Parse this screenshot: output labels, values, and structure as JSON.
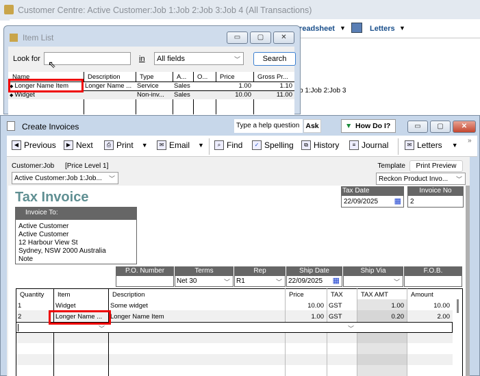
{
  "customer_centre": {
    "title": "Customer Centre: Active Customer:Job 1:Job 2:Job 3:Job 4 (All Transactions)",
    "spreadsheet_label": "readsheet",
    "letters_label": "Letters",
    "job_text": "b 1:Job 2:Job 3"
  },
  "item_list": {
    "title": "Item List",
    "look_for_label": "Look for",
    "look_for_value": "",
    "in_label": "in",
    "in_value": "All fields",
    "search_label": "Search",
    "columns": [
      "Name",
      "Description",
      "Type",
      "A...",
      "O...",
      "Price",
      "Gross Pr..."
    ],
    "rows": [
      [
        "Longer Name Item",
        "Longer Name ...",
        "Service",
        "Sales",
        "",
        "1.00",
        "1.10"
      ],
      [
        "Widget",
        "",
        "Non-inv...",
        "Sales",
        "",
        "10.00",
        "11.00"
      ]
    ]
  },
  "invoice": {
    "title": "Create Invoices",
    "help_placeholder": "Type a help question",
    "ask_label": "Ask",
    "how_do_i_label": "How Do I?",
    "toolbar": [
      "Previous",
      "Next",
      "Print",
      "Email",
      "Find",
      "Spelling",
      "History",
      "Journal",
      "Letters"
    ],
    "customer_job_label": "Customer:Job",
    "price_level": "[Price Level 1]",
    "customer_job_value": "Active Customer:Job 1:Job...",
    "template_label": "Template",
    "print_preview_label": "Print Preview",
    "template_value": "Reckon Product Invo...",
    "form_title": "Tax Invoice",
    "tax_date_label": "Tax Date",
    "tax_date": "22/09/2025",
    "invoice_no_label": "Invoice No",
    "invoice_no": "2",
    "invoice_to_label": "Invoice To:",
    "invoice_to_lines": [
      "Active Customer",
      "Active Customer",
      "12 Harbour View St",
      "Sydney, NSW 2000 Australia",
      "Note"
    ],
    "fields": {
      "po_label": "P.O. Number",
      "po": "",
      "terms_label": "Terms",
      "terms": "Net 30",
      "rep_label": "Rep",
      "rep": "R1",
      "ship_date_label": "Ship Date",
      "ship_date": "22/09/2025",
      "ship_via_label": "Ship Via",
      "ship_via": "",
      "fob_label": "F.O.B.",
      "fob": ""
    },
    "columns": [
      "Quantity",
      "Item",
      "Description",
      "Price",
      "TAX",
      "TAX AMT",
      "Amount"
    ],
    "lines": [
      [
        "1",
        "Widget",
        "Some widget",
        "10.00",
        "GST",
        "1.00",
        "10.00"
      ],
      [
        "2",
        "Longer Name ...",
        "Longer Name Item",
        "1.00",
        "GST",
        "0.20",
        "2.00"
      ]
    ]
  }
}
